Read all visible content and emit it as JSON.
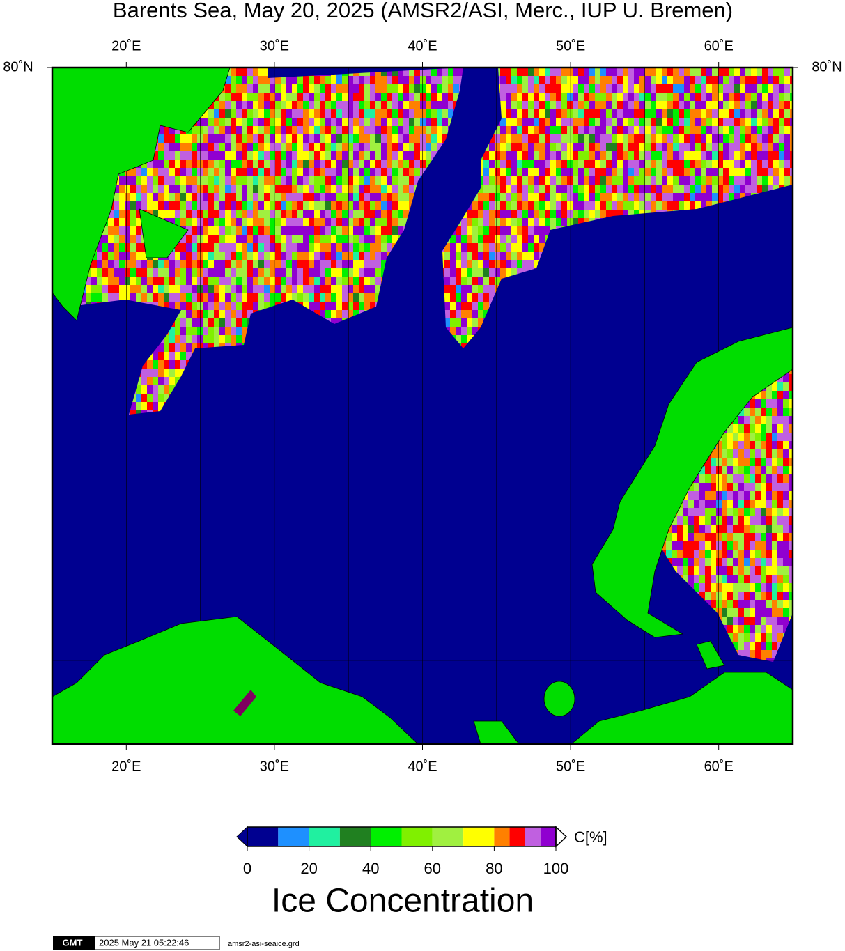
{
  "chart_data": {
    "type": "map",
    "title": "Barents Sea, May 20, 2025 (AMSR2/ASI, Merc., IUP U. Bremen)",
    "xlim": [
      15,
      65
    ],
    "xticks": [
      {
        "value": 20,
        "label": "20˚E"
      },
      {
        "value": 30,
        "label": "30˚E"
      },
      {
        "value": 40,
        "label": "40˚E"
      },
      {
        "value": 50,
        "label": "50˚E"
      },
      {
        "value": 60,
        "label": "60˚E"
      }
    ],
    "xgrid": [
      20,
      25,
      30,
      35,
      40,
      45,
      50,
      55,
      60
    ],
    "lat_label": "80˚N",
    "ocean_color": "#000090",
    "colorbar": {
      "title": "Ice Concentration",
      "unit": "C[%]",
      "range": [
        0,
        100
      ],
      "ticks": [
        0,
        20,
        40,
        60,
        80,
        100
      ],
      "bounds": [
        0,
        10,
        20,
        30,
        40,
        50,
        60,
        70,
        80,
        85,
        90,
        95,
        100
      ],
      "colors": [
        "#000090",
        "#1e90ff",
        "#20f0a0",
        "#208020",
        "#00f000",
        "#80f000",
        "#a0f040",
        "#ffff00",
        "#ff8000",
        "#ff0000",
        "#c060e0",
        "#9000d0"
      ]
    },
    "footer": {
      "logo": "GMT",
      "timestamp": "2025 May 21 05:22:46",
      "file": "amsr2-asi-seaice.grd"
    }
  }
}
